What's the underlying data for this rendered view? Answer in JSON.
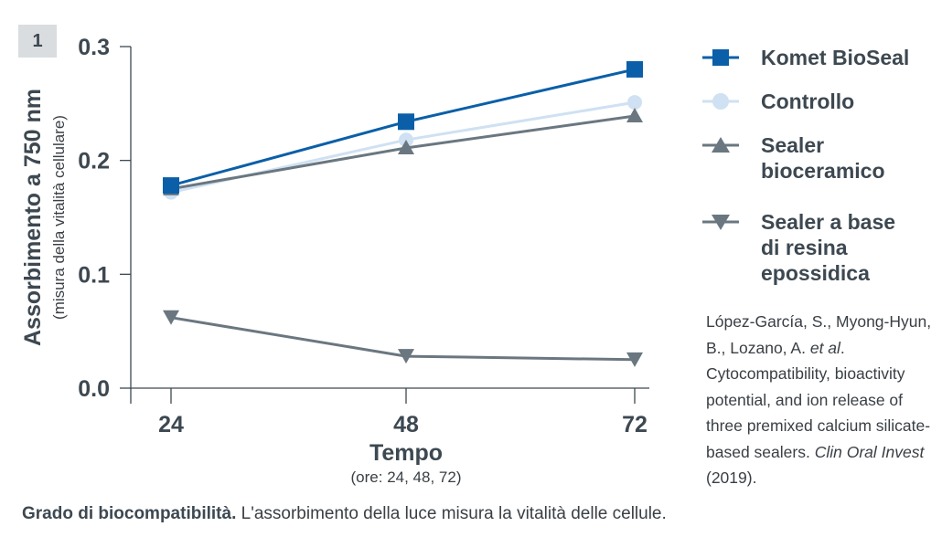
{
  "figure_number": "1",
  "chart_data": {
    "type": "line",
    "x": [
      24,
      48,
      72
    ],
    "ylim": [
      0.0,
      0.3
    ],
    "yticks": [
      "0.0",
      "0.1",
      "0.2",
      "0.3"
    ],
    "xticks": [
      "24",
      "48",
      "72"
    ],
    "ylabel": "Assorbimento a 750 nm",
    "ylabel_sub": "(misura della vitalità cellulare)",
    "xlabel": "Tempo",
    "xlabel_sub": "(ore: 24, 48, 72)",
    "legend_placement": "right",
    "grid": false,
    "series": [
      {
        "name": "Komet BioSeal",
        "values": [
          0.178,
          0.234,
          0.28
        ],
        "color": "#0a5fa8",
        "marker": "square"
      },
      {
        "name": "Controllo",
        "values": [
          0.172,
          0.218,
          0.251
        ],
        "color": "#cfe1f2",
        "marker": "circle"
      },
      {
        "name": "Sealer bioceramico",
        "values": [
          0.175,
          0.211,
          0.239
        ],
        "color": "#6a7780",
        "marker": "triangle-up"
      },
      {
        "name": "Sealer a base di resina epossidica",
        "values": [
          0.062,
          0.028,
          0.025
        ],
        "color": "#6a7780",
        "marker": "triangle-down"
      }
    ]
  },
  "legend": {
    "items": [
      {
        "label": "Komet BioSeal"
      },
      {
        "label": "Controllo"
      },
      {
        "label": "Sealer\nbioceramico"
      },
      {
        "label": "Sealer a base\ndi resina\nepossidica"
      }
    ]
  },
  "citation": {
    "authors": "López-García, S., Myong-Hyun, B., Lozano, A.",
    "etal": "et al",
    "title": ". Cytocompatibility, bioactivity potential, and ion release of three premixed calcium silicate-based sealers.",
    "journal": "Clin Oral Invest",
    "year": " (2019)."
  },
  "caption": {
    "bold": "Grado di biocompatibilità.",
    "text": " L'assorbimento della luce misura la vitalità delle cellule."
  }
}
